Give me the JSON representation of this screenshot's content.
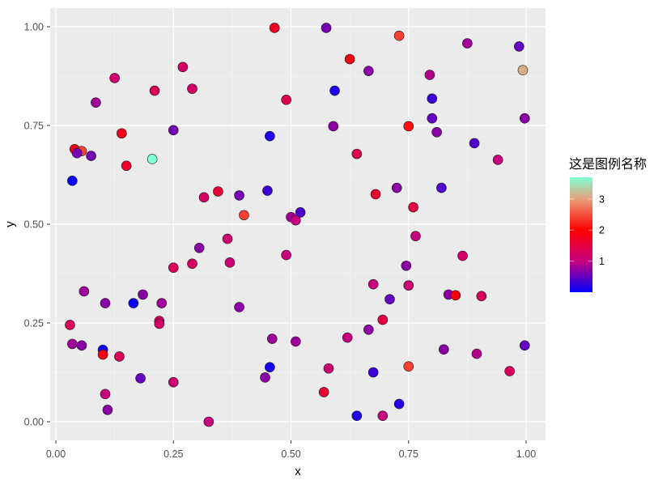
{
  "chart_data": {
    "type": "scatter",
    "title": "",
    "xlabel": "x",
    "ylabel": "y",
    "xlim": [
      -0.025,
      1.04
    ],
    "ylim": [
      -0.045,
      1.05
    ],
    "x_ticks": [
      0.0,
      0.25,
      0.5,
      0.75,
      1.0
    ],
    "x_tick_labels": [
      "0.00",
      "0.25",
      "0.50",
      "0.75",
      "1.00"
    ],
    "y_ticks": [
      0.0,
      0.25,
      0.5,
      0.75,
      1.0
    ],
    "y_tick_labels": [
      "0.00",
      "0.25",
      "0.50",
      "0.75",
      "1.00"
    ],
    "grid": true,
    "background": "#EBEBEB",
    "legend": {
      "title": "这是图例名称",
      "position": "right",
      "type": "colorbar",
      "range": [
        0,
        3.7
      ],
      "ticks": [
        1,
        2,
        3
      ],
      "tick_labels": [
        "1",
        "2",
        "3"
      ],
      "gradient_stops": [
        {
          "value": 0.0,
          "color": "#0000FF"
        },
        {
          "value": 1.0,
          "color": "#C7007F"
        },
        {
          "value": 2.0,
          "color": "#FF0000"
        },
        {
          "value": 3.0,
          "color": "#E8A07A"
        },
        {
          "value": 3.7,
          "color": "#7FFFD4"
        }
      ]
    },
    "points": [
      {
        "x": 0.035,
        "y": 0.61,
        "v": 0.05
      },
      {
        "x": 0.04,
        "y": 0.69,
        "v": 1.8
      },
      {
        "x": 0.055,
        "y": 0.685,
        "v": 2.4
      },
      {
        "x": 0.045,
        "y": 0.68,
        "v": 0.6
      },
      {
        "x": 0.075,
        "y": 0.673,
        "v": 0.6
      },
      {
        "x": 0.085,
        "y": 0.808,
        "v": 0.8
      },
      {
        "x": 0.125,
        "y": 0.87,
        "v": 1.1
      },
      {
        "x": 0.14,
        "y": 0.73,
        "v": 1.8
      },
      {
        "x": 0.15,
        "y": 0.648,
        "v": 1.7
      },
      {
        "x": 0.205,
        "y": 0.665,
        "v": 3.7
      },
      {
        "x": 0.21,
        "y": 0.838,
        "v": 1.3
      },
      {
        "x": 0.25,
        "y": 0.738,
        "v": 0.6
      },
      {
        "x": 0.27,
        "y": 0.898,
        "v": 1.2
      },
      {
        "x": 0.29,
        "y": 0.843,
        "v": 1.2
      },
      {
        "x": 0.465,
        "y": 0.997,
        "v": 1.7
      },
      {
        "x": 0.575,
        "y": 0.997,
        "v": 0.6
      },
      {
        "x": 0.73,
        "y": 0.977,
        "v": 2.4
      },
      {
        "x": 0.625,
        "y": 0.918,
        "v": 1.9
      },
      {
        "x": 0.49,
        "y": 0.815,
        "v": 1.4
      },
      {
        "x": 0.593,
        "y": 0.838,
        "v": 0.15
      },
      {
        "x": 0.665,
        "y": 0.888,
        "v": 0.7
      },
      {
        "x": 0.59,
        "y": 0.748,
        "v": 0.7
      },
      {
        "x": 0.455,
        "y": 0.723,
        "v": 0.15
      },
      {
        "x": 0.64,
        "y": 0.678,
        "v": 1.4
      },
      {
        "x": 0.75,
        "y": 0.748,
        "v": 2.1
      },
      {
        "x": 0.795,
        "y": 0.878,
        "v": 0.9
      },
      {
        "x": 0.875,
        "y": 0.958,
        "v": 0.8
      },
      {
        "x": 0.985,
        "y": 0.95,
        "v": 0.5
      },
      {
        "x": 0.993,
        "y": 0.89,
        "v": 3.1
      },
      {
        "x": 0.8,
        "y": 0.818,
        "v": 0.3
      },
      {
        "x": 0.8,
        "y": 0.768,
        "v": 0.5
      },
      {
        "x": 0.81,
        "y": 0.733,
        "v": 0.7
      },
      {
        "x": 0.89,
        "y": 0.705,
        "v": 0.4
      },
      {
        "x": 0.94,
        "y": 0.663,
        "v": 1.0
      },
      {
        "x": 0.997,
        "y": 0.768,
        "v": 0.7
      },
      {
        "x": 0.315,
        "y": 0.568,
        "v": 1.2
      },
      {
        "x": 0.345,
        "y": 0.583,
        "v": 1.6
      },
      {
        "x": 0.39,
        "y": 0.573,
        "v": 0.6
      },
      {
        "x": 0.4,
        "y": 0.523,
        "v": 2.4
      },
      {
        "x": 0.45,
        "y": 0.585,
        "v": 0.3
      },
      {
        "x": 0.305,
        "y": 0.44,
        "v": 0.7
      },
      {
        "x": 0.365,
        "y": 0.463,
        "v": 1.1
      },
      {
        "x": 0.37,
        "y": 0.403,
        "v": 1.1
      },
      {
        "x": 0.29,
        "y": 0.4,
        "v": 1.2
      },
      {
        "x": 0.25,
        "y": 0.39,
        "v": 1.3
      },
      {
        "x": 0.5,
        "y": 0.518,
        "v": 0.8
      },
      {
        "x": 0.52,
        "y": 0.53,
        "v": 0.4
      },
      {
        "x": 0.51,
        "y": 0.51,
        "v": 1.0
      },
      {
        "x": 0.49,
        "y": 0.422,
        "v": 1.0
      },
      {
        "x": 0.68,
        "y": 0.576,
        "v": 1.6
      },
      {
        "x": 0.725,
        "y": 0.592,
        "v": 0.7
      },
      {
        "x": 0.82,
        "y": 0.592,
        "v": 0.4
      },
      {
        "x": 0.76,
        "y": 0.543,
        "v": 1.5
      },
      {
        "x": 0.765,
        "y": 0.47,
        "v": 1.0
      },
      {
        "x": 0.745,
        "y": 0.395,
        "v": 0.7
      },
      {
        "x": 0.865,
        "y": 0.42,
        "v": 1.2
      },
      {
        "x": 0.675,
        "y": 0.348,
        "v": 1.0
      },
      {
        "x": 0.75,
        "y": 0.345,
        "v": 1.1
      },
      {
        "x": 0.71,
        "y": 0.31,
        "v": 0.5
      },
      {
        "x": 0.835,
        "y": 0.322,
        "v": 0.7
      },
      {
        "x": 0.85,
        "y": 0.32,
        "v": 1.9
      },
      {
        "x": 0.905,
        "y": 0.318,
        "v": 1.3
      },
      {
        "x": 0.06,
        "y": 0.33,
        "v": 0.8
      },
      {
        "x": 0.105,
        "y": 0.3,
        "v": 0.7
      },
      {
        "x": 0.165,
        "y": 0.3,
        "v": 0.05
      },
      {
        "x": 0.185,
        "y": 0.322,
        "v": 0.7
      },
      {
        "x": 0.225,
        "y": 0.3,
        "v": 0.8
      },
      {
        "x": 0.39,
        "y": 0.29,
        "v": 0.7
      },
      {
        "x": 0.03,
        "y": 0.245,
        "v": 1.3
      },
      {
        "x": 0.035,
        "y": 0.197,
        "v": 0.8
      },
      {
        "x": 0.055,
        "y": 0.193,
        "v": 0.7
      },
      {
        "x": 0.1,
        "y": 0.182,
        "v": 0.05
      },
      {
        "x": 0.1,
        "y": 0.17,
        "v": 1.9
      },
      {
        "x": 0.135,
        "y": 0.165,
        "v": 1.3
      },
      {
        "x": 0.22,
        "y": 0.255,
        "v": 1.3
      },
      {
        "x": 0.22,
        "y": 0.248,
        "v": 1.2
      },
      {
        "x": 0.18,
        "y": 0.11,
        "v": 0.5
      },
      {
        "x": 0.25,
        "y": 0.1,
        "v": 1.1
      },
      {
        "x": 0.105,
        "y": 0.07,
        "v": 1.0
      },
      {
        "x": 0.11,
        "y": 0.03,
        "v": 0.7
      },
      {
        "x": 0.325,
        "y": 0.0,
        "v": 1.0
      },
      {
        "x": 0.46,
        "y": 0.21,
        "v": 0.8
      },
      {
        "x": 0.51,
        "y": 0.203,
        "v": 0.8
      },
      {
        "x": 0.455,
        "y": 0.138,
        "v": 0.1
      },
      {
        "x": 0.445,
        "y": 0.112,
        "v": 0.7
      },
      {
        "x": 0.58,
        "y": 0.135,
        "v": 1.1
      },
      {
        "x": 0.57,
        "y": 0.075,
        "v": 1.6
      },
      {
        "x": 0.62,
        "y": 0.213,
        "v": 1.0
      },
      {
        "x": 0.665,
        "y": 0.233,
        "v": 0.7
      },
      {
        "x": 0.695,
        "y": 0.258,
        "v": 1.5
      },
      {
        "x": 0.675,
        "y": 0.125,
        "v": 0.3
      },
      {
        "x": 0.75,
        "y": 0.14,
        "v": 2.4
      },
      {
        "x": 0.64,
        "y": 0.015,
        "v": 0.15
      },
      {
        "x": 0.695,
        "y": 0.015,
        "v": 1.0
      },
      {
        "x": 0.73,
        "y": 0.045,
        "v": 0.2
      },
      {
        "x": 0.825,
        "y": 0.183,
        "v": 0.7
      },
      {
        "x": 0.895,
        "y": 0.172,
        "v": 0.9
      },
      {
        "x": 0.965,
        "y": 0.128,
        "v": 1.3
      },
      {
        "x": 0.997,
        "y": 0.193,
        "v": 0.5
      }
    ]
  }
}
